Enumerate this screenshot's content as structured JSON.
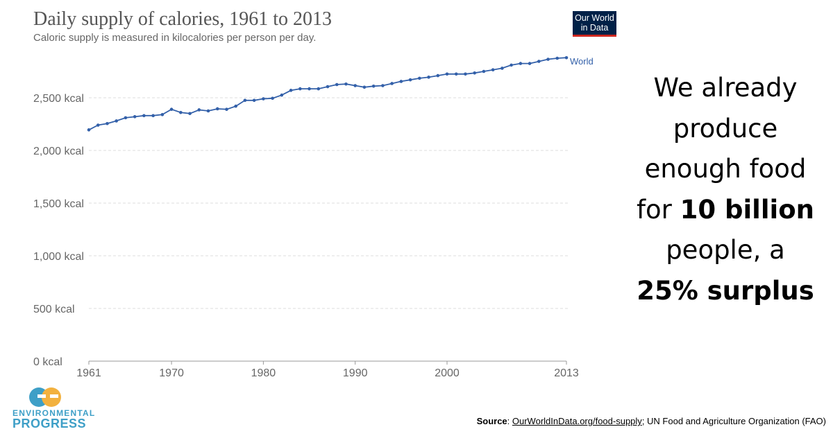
{
  "chart_data": {
    "type": "line",
    "title": "Daily supply of calories, 1961 to 2013",
    "subtitle": "Caloric supply is measured in kilocalories per person per day.",
    "xlabel": "",
    "ylabel": "",
    "xlim": [
      1961,
      2013
    ],
    "ylim": [
      0,
      3000
    ],
    "x_ticks": [
      1961,
      1970,
      1980,
      1990,
      2000,
      2013
    ],
    "y_ticks": [
      0,
      500,
      1000,
      1500,
      2000,
      2500
    ],
    "y_tick_labels": [
      "0 kcal",
      "500 kcal",
      "1,000 kcal",
      "1,500 kcal",
      "2,000 kcal",
      "2,500 kcal"
    ],
    "grid": "horizontal dashed",
    "series": [
      {
        "name": "World",
        "color": "#3360a9",
        "x": [
          1961,
          1962,
          1963,
          1964,
          1965,
          1966,
          1967,
          1968,
          1969,
          1970,
          1971,
          1972,
          1973,
          1974,
          1975,
          1976,
          1977,
          1978,
          1979,
          1980,
          1981,
          1982,
          1983,
          1984,
          1985,
          1986,
          1987,
          1988,
          1989,
          1990,
          1991,
          1992,
          1993,
          1994,
          1995,
          1996,
          1997,
          1998,
          1999,
          2000,
          2001,
          2002,
          2003,
          2004,
          2005,
          2006,
          2007,
          2008,
          2009,
          2010,
          2011,
          2012,
          2013
        ],
        "values": [
          2195,
          2240,
          2255,
          2280,
          2310,
          2320,
          2330,
          2330,
          2340,
          2390,
          2360,
          2350,
          2385,
          2375,
          2395,
          2390,
          2420,
          2475,
          2475,
          2490,
          2495,
          2525,
          2570,
          2585,
          2585,
          2585,
          2605,
          2625,
          2630,
          2615,
          2600,
          2610,
          2615,
          2635,
          2655,
          2670,
          2685,
          2695,
          2710,
          2725,
          2725,
          2725,
          2735,
          2750,
          2765,
          2780,
          2810,
          2825,
          2825,
          2845,
          2865,
          2875,
          2880
        ]
      }
    ]
  },
  "logo": {
    "line1": "Our World",
    "line2": "in Data",
    "bg_color": "#002147",
    "accent_color": "#ce261e"
  },
  "side_text": {
    "line1": "We already",
    "line2": "produce",
    "line3": "enough food",
    "line4_pre": "for ",
    "line4_bold": "10 billion",
    "line5": "people, a",
    "line6_bold": "25% surplus"
  },
  "brand": {
    "line1": "ENVIRONMENTAL",
    "line2": "PROGRESS",
    "color": "#3e9fc7",
    "accent_color": "#f2b13f"
  },
  "source": {
    "label": "Source",
    "sep": ": ",
    "link": "OurWorldInData.org/food-supply",
    "rest": "; UN Food and Agriculture Organization (FAO)"
  }
}
